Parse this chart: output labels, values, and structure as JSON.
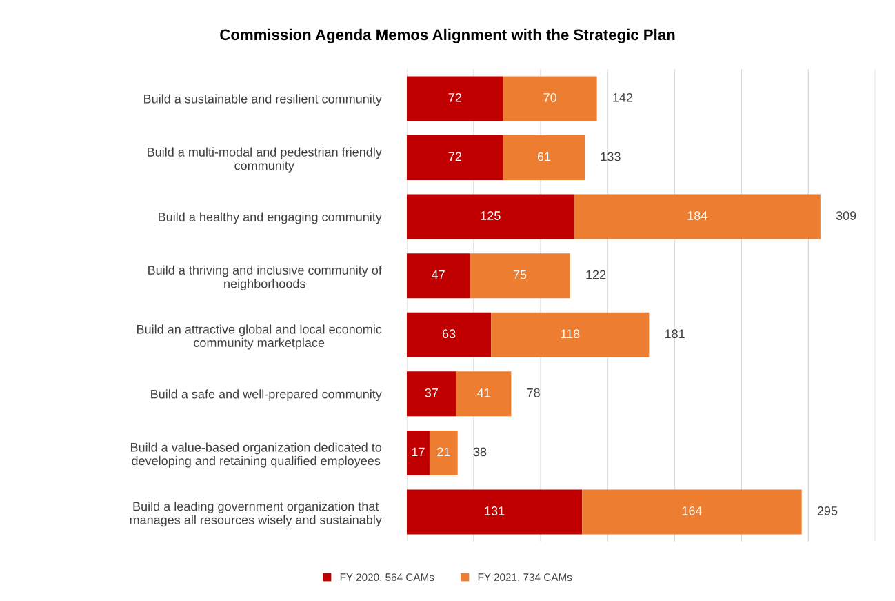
{
  "chart_data": {
    "type": "bar",
    "orientation": "horizontal",
    "stacked": true,
    "title": "Commission Agenda Memos Alignment with the Strategic Plan",
    "categories": [
      "Build a sustainable and resilient community",
      "Build a multi-modal and pedestrian friendly\ncommunity",
      "Build a healthy and engaging community",
      "Build a thriving and inclusive community of\nneighborhoods",
      "Build an attractive global and local economic\ncommunity marketplace",
      "Build a safe and well-prepared community",
      "Build a value-based organization dedicated to\ndeveloping and retaining qualified employees",
      "Build a leading government organization that\nmanages all resources wisely and sustainably"
    ],
    "series": [
      {
        "name": "FY 2020, 564 CAMs",
        "color": "#c00000",
        "values": [
          72,
          72,
          125,
          47,
          63,
          37,
          17,
          131
        ]
      },
      {
        "name": "FY 2021, 734 CAMs",
        "color": "#ed7d31",
        "values": [
          70,
          61,
          184,
          75,
          118,
          41,
          21,
          164
        ]
      }
    ],
    "totals": [
      "142",
      "133",
      "309",
      "122",
      "181",
      "78",
      "38",
      "295"
    ],
    "data_labels": true,
    "xlim": [
      0,
      350
    ],
    "xticks": [
      {
        "value": 0,
        "label": null
      },
      {
        "value": 50,
        "label": null
      },
      {
        "value": 100,
        "label": null
      },
      {
        "value": 150,
        "label": null
      },
      {
        "value": 200,
        "label": null
      },
      {
        "value": 250,
        "label": null
      },
      {
        "value": 300,
        "label": null
      },
      {
        "value": 350,
        "label": null
      }
    ],
    "grid": "x",
    "legend": "bottom",
    "tick_labels": "y"
  }
}
